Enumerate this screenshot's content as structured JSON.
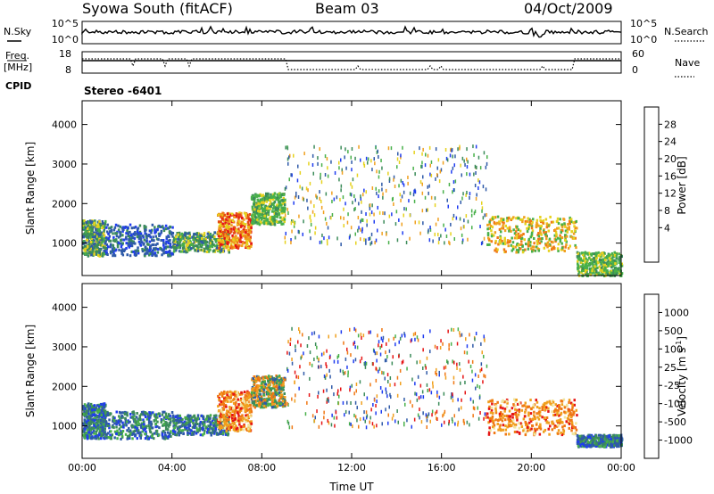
{
  "header": {
    "station": "Syowa South (fitACF)",
    "beam": "Beam 03",
    "date": "04/Oct/2009"
  },
  "status_panels": {
    "nsky_label": "N.Sky",
    "nsky_ticks": [
      "10^5",
      "10^0"
    ],
    "nsearch_label": "N.Search",
    "nsearch_ticks": [
      "10^5",
      "10^0"
    ],
    "freq_label_line1": "Freq.",
    "freq_label_line2": "[MHz]",
    "freq_ticks": [
      "18",
      "8"
    ],
    "nave_label": "Nave",
    "nave_ticks": [
      "60",
      "0"
    ],
    "cpid_label": "CPID",
    "cpid_value": "Stereo -6401"
  },
  "colors": {
    "power_scale": [
      "#1f3cf0",
      "#2f5aa8",
      "#3c8c5a",
      "#48b04a",
      "#e6d21e",
      "#f0a01e",
      "#f07814",
      "#e64b14",
      "#e61414"
    ],
    "velocity_scale": [
      "#e61414",
      "#f07814",
      "#f0a01e",
      "#f0e6a0",
      "#c8c8c8",
      "#48b04a",
      "#3c8c5a",
      "#2f5aa8",
      "#1f3cf0"
    ]
  },
  "chart_data": [
    {
      "type": "heatmap",
      "name": "power-panel",
      "xlabel": "Time UT",
      "ylabel": "Slant Range [km]",
      "x_ticks": [
        "00:00",
        "04:00",
        "08:00",
        "12:00",
        "16:00",
        "20:00",
        "00:00"
      ],
      "x_range_hours": [
        0,
        24
      ],
      "y_ticks": [
        1000,
        2000,
        3000,
        4000
      ],
      "ylim": [
        180,
        4600
      ],
      "colorbar": {
        "label": "Power [dB]",
        "ticks": [
          "4",
          "8",
          "12",
          "16",
          "20",
          "24",
          "28"
        ],
        "range": [
          0,
          30
        ]
      },
      "echo_regions": [
        {
          "t0": 0.0,
          "t1": 1.0,
          "r0": 700,
          "r1": 1600,
          "level": "low-mid"
        },
        {
          "t0": 1.0,
          "t1": 4.0,
          "r0": 700,
          "r1": 1500,
          "level": "low"
        },
        {
          "t0": 4.0,
          "t1": 6.5,
          "r0": 800,
          "r1": 1300,
          "level": "low-mid"
        },
        {
          "t0": 6.0,
          "t1": 7.5,
          "r0": 900,
          "r1": 1800,
          "level": "high"
        },
        {
          "t0": 7.5,
          "t1": 9.0,
          "r0": 1500,
          "r1": 2300,
          "level": "mid"
        },
        {
          "t0": 9.0,
          "t1": 18.0,
          "r0": 1000,
          "r1": 3500,
          "level": "sparse"
        },
        {
          "t0": 18.0,
          "t1": 22.0,
          "r0": 800,
          "r1": 1700,
          "level": "mid-high"
        },
        {
          "t0": 22.0,
          "t1": 24.0,
          "r0": 200,
          "r1": 800,
          "level": "mid"
        }
      ]
    },
    {
      "type": "heatmap",
      "name": "velocity-panel",
      "xlabel": "Time UT",
      "ylabel": "Slant Range [km]",
      "x_ticks": [
        "00:00",
        "04:00",
        "08:00",
        "12:00",
        "16:00",
        "20:00",
        "00:00"
      ],
      "x_range_hours": [
        0,
        24
      ],
      "y_ticks": [
        1000,
        2000,
        3000,
        4000
      ],
      "ylim": [
        180,
        4600
      ],
      "colorbar": {
        "label": "Velocity [m s",
        "label_sup": "-1",
        "label_end": "]",
        "ticks": [
          "1000",
          "500",
          "100",
          "25",
          "-25",
          "-100",
          "-500",
          "-1000"
        ],
        "range": [
          -1200,
          1200
        ]
      },
      "echo_regions": [
        {
          "t0": 0.0,
          "t1": 1.0,
          "r0": 700,
          "r1": 1600,
          "level": "positive"
        },
        {
          "t0": 1.0,
          "t1": 4.0,
          "r0": 700,
          "r1": 1400,
          "level": "positive"
        },
        {
          "t0": 4.0,
          "t1": 6.5,
          "r0": 800,
          "r1": 1300,
          "level": "positive"
        },
        {
          "t0": 6.0,
          "t1": 7.5,
          "r0": 900,
          "r1": 1900,
          "level": "negative"
        },
        {
          "t0": 7.5,
          "t1": 9.0,
          "r0": 1500,
          "r1": 2300,
          "level": "mixed"
        },
        {
          "t0": 9.0,
          "t1": 18.0,
          "r0": 1000,
          "r1": 3500,
          "level": "sparse"
        },
        {
          "t0": 18.0,
          "t1": 22.0,
          "r0": 800,
          "r1": 1700,
          "level": "negative"
        },
        {
          "t0": 22.0,
          "t1": 24.0,
          "r0": 500,
          "r1": 800,
          "level": "positive"
        }
      ]
    }
  ]
}
